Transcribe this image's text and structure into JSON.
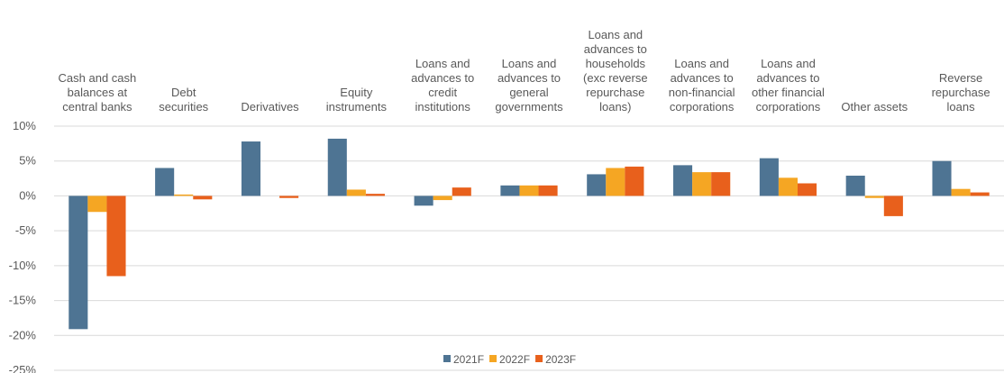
{
  "chart_data": {
    "type": "bar",
    "categories": [
      "Cash and cash\nbalances at\ncentral banks",
      "Debt\nsecurities",
      "Derivatives",
      "Equity\ninstruments",
      "Loans and\nadvances to\ncredit\ninstitutions",
      "Loans and\nadvances to\ngeneral\ngovernments",
      "Loans and\nadvances to\nhouseholds\n(exc reverse\nrepurchase\nloans)",
      "Loans and\nadvances to\nnon-financial\ncorporations",
      "Loans and\nadvances to\nother financial\ncorporations",
      "Other assets",
      "Reverse\nrepurchase\nloans"
    ],
    "series": [
      {
        "name": "2021F",
        "color": "#4e7493",
        "values": [
          -19.1,
          4.0,
          7.8,
          8.2,
          -1.4,
          1.5,
          3.1,
          4.4,
          5.4,
          2.9,
          5.0
        ]
      },
      {
        "name": "2022F",
        "color": "#f5a623",
        "values": [
          -2.3,
          0.2,
          0.0,
          0.9,
          -0.6,
          1.5,
          4.0,
          3.4,
          2.6,
          -0.3,
          1.0
        ]
      },
      {
        "name": "2023F",
        "color": "#e8601c",
        "values": [
          -11.5,
          -0.5,
          -0.3,
          0.3,
          1.2,
          1.5,
          4.2,
          3.4,
          1.8,
          -2.9,
          0.5
        ]
      }
    ],
    "ylim": [
      -25,
      10
    ],
    "yticks": [
      {
        "value": -25,
        "label": "-25%"
      },
      {
        "value": -20,
        "label": "-20%"
      },
      {
        "value": -15,
        "label": "-15%"
      },
      {
        "value": -10,
        "label": "-10%"
      },
      {
        "value": -5,
        "label": "-5%"
      },
      {
        "value": 0,
        "label": "0%"
      },
      {
        "value": 5,
        "label": "5%"
      },
      {
        "value": 10,
        "label": "10%"
      }
    ],
    "grid": true,
    "legend": "bottom"
  }
}
